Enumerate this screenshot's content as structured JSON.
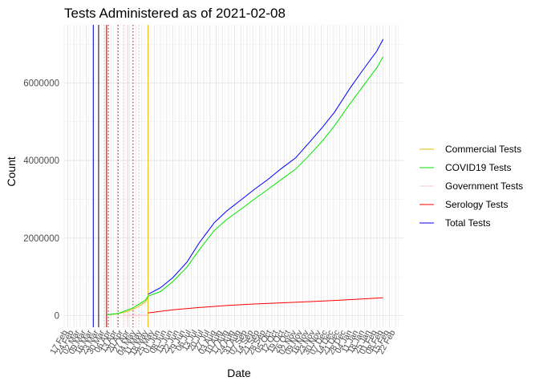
{
  "chart_data": {
    "type": "line",
    "title": "Tests Administered as of 2021-02-08",
    "xlabel": "Date",
    "ylabel": "Count",
    "xlim": [
      "2020-02-13",
      "2021-03-03"
    ],
    "ylim": [
      -300000,
      7500000
    ],
    "yticks": [
      0,
      2000000,
      4000000,
      6000000
    ],
    "ytick_labels": [
      "0",
      "2000000",
      "4000000",
      "6000000"
    ],
    "grid": true,
    "legend_position": "right",
    "xticks": [
      {
        "date": "2020-02-17",
        "label": "17 Feb"
      },
      {
        "date": "2020-02-24",
        "label": "24 Feb"
      },
      {
        "date": "2020-03-02",
        "label": "02 Mar"
      },
      {
        "date": "2020-03-09",
        "label": "09 Mar"
      },
      {
        "date": "2020-03-16",
        "label": "16 Mar"
      },
      {
        "date": "2020-03-23",
        "label": "23 Mar"
      },
      {
        "date": "2020-03-30",
        "label": "30 Mar"
      },
      {
        "date": "2020-04-06",
        "label": "06 Apr"
      },
      {
        "date": "2020-04-13",
        "label": "13 Apr"
      },
      {
        "date": "2020-04-20",
        "label": "20 Apr"
      },
      {
        "date": "2020-04-27",
        "label": "27 Apr"
      },
      {
        "date": "2020-05-04",
        "label": "04 May"
      },
      {
        "date": "2020-05-11",
        "label": "11 May"
      },
      {
        "date": "2020-05-18",
        "label": "18 May"
      },
      {
        "date": "2020-05-25",
        "label": "25 May"
      },
      {
        "date": "2020-06-01",
        "label": "01 Jun"
      },
      {
        "date": "2020-06-08",
        "label": "08 Jun"
      },
      {
        "date": "2020-06-15",
        "label": "15 Jun"
      },
      {
        "date": "2020-06-22",
        "label": "22 Jun"
      },
      {
        "date": "2020-06-29",
        "label": "29 Jun"
      },
      {
        "date": "2020-07-06",
        "label": "06 Jul"
      },
      {
        "date": "2020-07-13",
        "label": "13 Jul"
      },
      {
        "date": "2020-07-20",
        "label": "20 Jul"
      },
      {
        "date": "2020-07-27",
        "label": "27 Jul"
      },
      {
        "date": "2020-08-03",
        "label": "03 Aug"
      },
      {
        "date": "2020-08-10",
        "label": "10 Aug"
      },
      {
        "date": "2020-08-17",
        "label": "17 Aug"
      },
      {
        "date": "2020-08-24",
        "label": "24 Aug"
      },
      {
        "date": "2020-08-31",
        "label": "31 Aug"
      },
      {
        "date": "2020-09-07",
        "label": "07 Sep"
      },
      {
        "date": "2020-09-14",
        "label": "14 Sep"
      },
      {
        "date": "2020-09-21",
        "label": "21 Sep"
      },
      {
        "date": "2020-09-28",
        "label": "28 Sep"
      },
      {
        "date": "2020-10-05",
        "label": "05 Oct"
      },
      {
        "date": "2020-10-12",
        "label": "12 Oct"
      },
      {
        "date": "2020-10-19",
        "label": "19 Oct"
      },
      {
        "date": "2020-10-26",
        "label": "26 Oct"
      },
      {
        "date": "2020-11-02",
        "label": "02 Nov"
      },
      {
        "date": "2020-11-09",
        "label": "09 Nov"
      },
      {
        "date": "2020-11-16",
        "label": "16 Nov"
      },
      {
        "date": "2020-11-23",
        "label": "23 Nov"
      },
      {
        "date": "2020-11-30",
        "label": "30 Nov"
      },
      {
        "date": "2020-12-07",
        "label": "07 Dec"
      },
      {
        "date": "2020-12-14",
        "label": "14 Dec"
      },
      {
        "date": "2020-12-21",
        "label": "21 Dec"
      },
      {
        "date": "2020-12-28",
        "label": "28 Dec"
      },
      {
        "date": "2021-01-04",
        "label": "04 Jan"
      },
      {
        "date": "2021-01-11",
        "label": "11 Jan"
      },
      {
        "date": "2021-01-18",
        "label": "18 Jan"
      },
      {
        "date": "2021-01-25",
        "label": "25 Jan"
      },
      {
        "date": "2021-02-01",
        "label": "01 Feb"
      },
      {
        "date": "2021-02-08",
        "label": "08 Feb"
      },
      {
        "date": "2021-02-15",
        "label": "15 Feb"
      },
      {
        "date": "2021-02-22",
        "label": "22 Feb"
      }
    ],
    "vlines": [
      {
        "date": "2020-03-17",
        "color": "#0000cc",
        "style": "solid"
      },
      {
        "date": "2020-03-23",
        "color": "#000000",
        "style": "solid"
      },
      {
        "date": "2020-03-29",
        "color": "#cccccc",
        "style": "dotted"
      },
      {
        "date": "2020-04-01",
        "color": "#8b0000",
        "style": "solid"
      },
      {
        "date": "2020-04-03",
        "color": "#ff0000",
        "style": "dotted"
      },
      {
        "date": "2020-04-14",
        "color": "#cc0000",
        "style": "dotted"
      },
      {
        "date": "2020-04-21",
        "color": "#ffc0cb",
        "style": "dotted"
      },
      {
        "date": "2020-04-25",
        "color": "#ffc0cb",
        "style": "solid"
      },
      {
        "date": "2020-05-01",
        "color": "#cc0000",
        "style": "dotted"
      },
      {
        "date": "2020-05-08",
        "color": "#cccccc",
        "style": "dotted"
      },
      {
        "date": "2020-05-18",
        "color": "#e6b800",
        "style": "solid"
      }
    ],
    "series": [
      {
        "name": "Commercial Tests",
        "color": "#e6b800",
        "x": [
          "2020-04-05",
          "2020-04-15",
          "2020-04-25",
          "2020-05-05",
          "2020-05-15",
          "2020-05-18"
        ],
        "y": [
          20000,
          55000,
          110000,
          210000,
          350000,
          480000
        ]
      },
      {
        "name": "COVID19 Tests",
        "color": "#00e600",
        "x": [
          "2020-04-01",
          "2020-04-15",
          "2020-05-01",
          "2020-05-15",
          "2020-05-18",
          "2020-06-01",
          "2020-06-15",
          "2020-07-01",
          "2020-07-15",
          "2020-08-01",
          "2020-08-15",
          "2020-09-01",
          "2020-09-15",
          "2020-10-01",
          "2020-10-15",
          "2020-11-01",
          "2020-11-15",
          "2020-12-01",
          "2020-12-15",
          "2021-01-01",
          "2021-01-15",
          "2021-02-01",
          "2021-02-08"
        ],
        "y": [
          20000,
          60000,
          200000,
          400000,
          500000,
          620000,
          880000,
          1250000,
          1700000,
          2200000,
          2480000,
          2760000,
          3000000,
          3260000,
          3500000,
          3780000,
          4100000,
          4500000,
          4900000,
          5450000,
          5880000,
          6400000,
          6680000
        ]
      },
      {
        "name": "Government Tests",
        "color": "#ffc0cb",
        "x": [
          "2020-04-20",
          "2020-05-18"
        ],
        "y": [
          5000,
          10000
        ]
      },
      {
        "name": "Serology Tests",
        "color": "#ff0000",
        "x": [
          "2020-05-18",
          "2020-06-15",
          "2020-07-15",
          "2020-08-15",
          "2020-09-15",
          "2020-10-15",
          "2020-11-15",
          "2020-12-15",
          "2021-01-15",
          "2021-02-08"
        ],
        "y": [
          70000,
          150000,
          210000,
          260000,
          300000,
          330000,
          360000,
          390000,
          430000,
          460000
        ]
      },
      {
        "name": "Total Tests",
        "color": "#0000ff",
        "x": [
          "2020-05-18",
          "2020-06-01",
          "2020-06-15",
          "2020-07-01",
          "2020-07-15",
          "2020-08-01",
          "2020-08-15",
          "2020-09-01",
          "2020-09-15",
          "2020-10-01",
          "2020-10-15",
          "2020-11-01",
          "2020-11-15",
          "2020-12-01",
          "2020-12-15",
          "2021-01-01",
          "2021-01-15",
          "2021-02-01",
          "2021-02-08"
        ],
        "y": [
          550000,
          720000,
          980000,
          1380000,
          1880000,
          2400000,
          2700000,
          3000000,
          3250000,
          3520000,
          3780000,
          4070000,
          4430000,
          4850000,
          5250000,
          5850000,
          6300000,
          6830000,
          7130000
        ]
      }
    ]
  }
}
